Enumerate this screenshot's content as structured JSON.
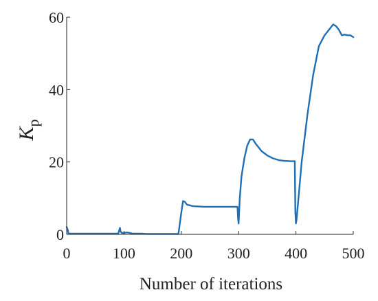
{
  "chart_data": {
    "type": "line",
    "title": "",
    "xlabel": "Number of iterations",
    "ylabel": {
      "symbol": "K",
      "subscript": "p"
    },
    "xlim": [
      0,
      500
    ],
    "ylim": [
      0,
      60
    ],
    "xticks": [
      0,
      100,
      200,
      300,
      400,
      500
    ],
    "yticks": [
      0,
      20,
      40,
      60
    ],
    "grid": false,
    "legend": "none",
    "series": [
      {
        "color": "#1f6fb4",
        "x": [
          0,
          2,
          3,
          4,
          6,
          90,
          93,
          94,
          96,
          100,
          105,
          110,
          115,
          120,
          130,
          140,
          150,
          160,
          180,
          195,
          200,
          203,
          206,
          210,
          220,
          240,
          260,
          280,
          298,
          299,
          300,
          302,
          305,
          310,
          315,
          320,
          325,
          330,
          340,
          350,
          360,
          370,
          380,
          390,
          398,
          399,
          400,
          401,
          405,
          410,
          420,
          430,
          440,
          450,
          455,
          460,
          465,
          470,
          475,
          480,
          485,
          490,
          495,
          500
        ],
        "y": [
          2.0,
          1.2,
          0.3,
          0.2,
          0.2,
          0.2,
          1.8,
          0.8,
          0.4,
          0.4,
          0.5,
          0.4,
          0.2,
          0.2,
          0.2,
          0.1,
          0.1,
          0.1,
          0.1,
          0.1,
          6.0,
          9.2,
          9.0,
          8.2,
          7.8,
          7.6,
          7.6,
          7.6,
          7.6,
          4.5,
          3.0,
          10.0,
          16.0,
          21.0,
          24.5,
          26.2,
          26.2,
          25.0,
          23.0,
          21.8,
          21.0,
          20.5,
          20.3,
          20.2,
          20.2,
          6.0,
          3.0,
          4.0,
          11.0,
          20.0,
          33.0,
          44.0,
          52.0,
          55.0,
          56.0,
          57.0,
          58.0,
          57.5,
          56.5,
          55.0,
          55.2,
          55.0,
          55.0,
          54.5
        ]
      }
    ]
  }
}
